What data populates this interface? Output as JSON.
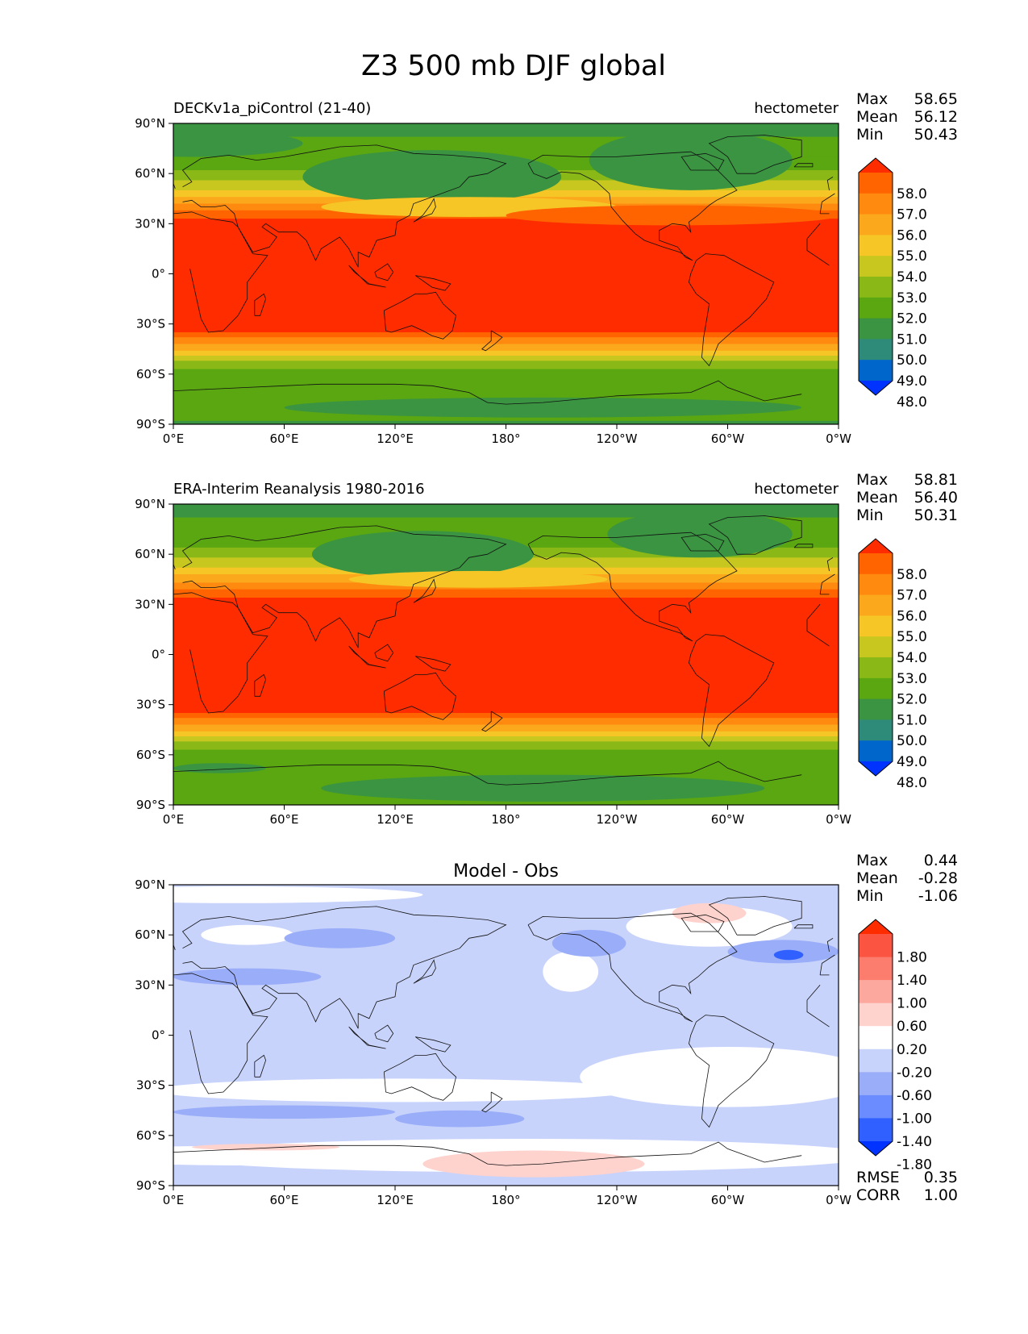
{
  "figure": {
    "title": "Z3 500 mb DJF global"
  },
  "colors": {
    "full_field": [
      "#0033ff",
      "#0066cc",
      "#2e8b7a",
      "#3a9441",
      "#5aa712",
      "#8ab917",
      "#c8c720",
      "#f6c626",
      "#fba81d",
      "#ff8a0f",
      "#ff6400",
      "#ff2c00"
    ],
    "diff_field": [
      "#0033ff",
      "#3060ff",
      "#6a8cff",
      "#9aadf8",
      "#c8d3fc",
      "#ffffff",
      "#fed2cd",
      "#fda89e",
      "#fc7d6e",
      "#fb5440",
      "#ff2c00"
    ]
  },
  "chart_data": [
    {
      "type": "heatmap",
      "title": "DECKv1a_piControl (21-40)",
      "units": "hectometer",
      "stats": [
        {
          "label": "Max",
          "value": "58.65"
        },
        {
          "label": "Mean",
          "value": "56.12"
        },
        {
          "label": "Min",
          "value": "50.43"
        }
      ],
      "xticks": [
        "0°E",
        "60°E",
        "120°E",
        "180°",
        "120°W",
        "60°W",
        "0°W"
      ],
      "yticks": [
        "90°N",
        "60°N",
        "30°N",
        "0°",
        "30°S",
        "60°S",
        "90°S"
      ],
      "colorbar_levels": [
        "58.0",
        "57.0",
        "56.0",
        "55.0",
        "54.0",
        "53.0",
        "52.0",
        "51.0",
        "50.0",
        "49.0",
        "48.0"
      ],
      "colorbar_extend": "both"
    },
    {
      "type": "heatmap",
      "title": "ERA-Interim Reanalysis 1980-2016",
      "units": "hectometer",
      "stats": [
        {
          "label": "Max",
          "value": "58.81"
        },
        {
          "label": "Mean",
          "value": "56.40"
        },
        {
          "label": "Min",
          "value": "50.31"
        }
      ],
      "xticks": [
        "0°E",
        "60°E",
        "120°E",
        "180°",
        "120°W",
        "60°W",
        "0°W"
      ],
      "yticks": [
        "90°N",
        "60°N",
        "30°N",
        "0°",
        "30°S",
        "60°S",
        "90°S"
      ],
      "colorbar_levels": [
        "58.0",
        "57.0",
        "56.0",
        "55.0",
        "54.0",
        "53.0",
        "52.0",
        "51.0",
        "50.0",
        "49.0",
        "48.0"
      ],
      "colorbar_extend": "both"
    },
    {
      "type": "heatmap",
      "title": "Model - Obs",
      "stats": [
        {
          "label": "Max",
          "value": "0.44"
        },
        {
          "label": "Mean",
          "value": "-0.28"
        },
        {
          "label": "Min",
          "value": "-1.06"
        }
      ],
      "extra_stats": [
        {
          "label": "RMSE",
          "value": "0.35"
        },
        {
          "label": "CORR",
          "value": "1.00"
        }
      ],
      "xticks": [
        "0°E",
        "60°E",
        "120°E",
        "180°",
        "120°W",
        "60°W",
        "0°W"
      ],
      "yticks": [
        "90°N",
        "60°N",
        "30°N",
        "0°",
        "30°S",
        "60°S",
        "90°S"
      ],
      "colorbar_levels": [
        "1.80",
        "1.40",
        "1.00",
        "0.60",
        "0.20",
        "-0.20",
        "-0.60",
        "-1.00",
        "-1.40",
        "-1.80"
      ],
      "colorbar_extend": "both"
    }
  ]
}
